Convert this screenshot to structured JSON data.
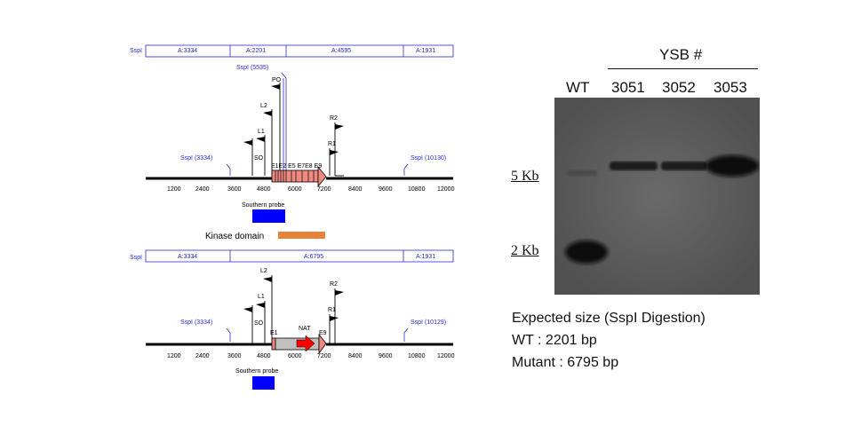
{
  "wt_map": {
    "row_site": "SspI",
    "fragments": [
      "A:3334",
      "A:2201",
      "A:4595",
      "A:1931"
    ],
    "top_site": "SspI (5535)",
    "left_site": "SspI (3334)",
    "right_site": "SspI (10130)",
    "primers": [
      "PO",
      "L2",
      "L1",
      "SO",
      "R2",
      "R1"
    ],
    "exons": "E1E2 E5 E7E8 E9",
    "ticks": [
      "1200",
      "2400",
      "3600",
      "4800",
      "6000",
      "7200",
      "8400",
      "9600",
      "10800",
      "12000"
    ],
    "probe_label": "Southern probe",
    "domain_label": "Kinase domain"
  },
  "mutant_map": {
    "row_site": "SspI",
    "fragments": [
      "A:3334",
      "A:6795",
      "A:1931"
    ],
    "left_site": "SspI (3334)",
    "right_site": "SspI (10129)",
    "primers": [
      "L2",
      "L1",
      "SO",
      "R2",
      "R1"
    ],
    "exon_left": "E1",
    "exon_right": "E9",
    "marker": "NAT",
    "ticks": [
      "1200",
      "2400",
      "3600",
      "4800",
      "6000",
      "7200",
      "8400",
      "9600",
      "10800",
      "12000"
    ],
    "probe_label": "Southern probe"
  },
  "gel": {
    "group_label": "YSB #",
    "lanes": [
      "WT",
      "3051",
      "3052",
      "3053"
    ],
    "markers": [
      "5 Kb",
      "2 Kb"
    ]
  },
  "expected": {
    "title": "Expected size (SspI Digestion)",
    "wt": "WT : 2201 bp",
    "mutant": "Mutant : 6795 bp"
  },
  "colors": {
    "probe": "#0000ff",
    "kinase": "#e8823a",
    "exon": "#f08a80",
    "marker": "#ff0000"
  }
}
